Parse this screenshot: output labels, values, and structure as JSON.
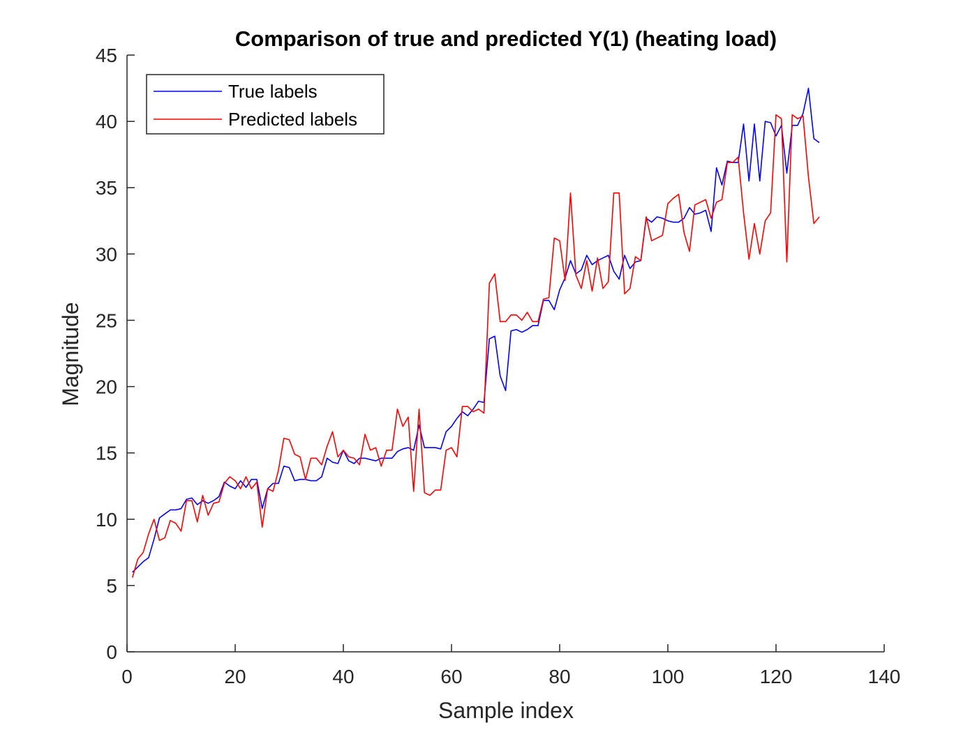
{
  "chart_data": {
    "type": "line",
    "title": "Comparison of true and predicted Y(1) (heating load)",
    "xlabel": "Sample index",
    "ylabel": "Magnitude",
    "xlim": [
      0,
      140
    ],
    "ylim": [
      0,
      45
    ],
    "xticks": [
      0,
      20,
      40,
      60,
      80,
      100,
      120,
      140
    ],
    "yticks": [
      0,
      5,
      10,
      15,
      20,
      25,
      30,
      35,
      40,
      45
    ],
    "grid": false,
    "legend_position": "top-left",
    "series": [
      {
        "name": "True labels",
        "color": "#0000ff",
        "x": [
          1,
          2,
          3,
          4,
          5,
          6,
          7,
          8,
          9,
          10,
          11,
          12,
          13,
          14,
          15,
          16,
          17,
          18,
          19,
          20,
          21,
          22,
          23,
          24,
          25,
          26,
          27,
          28,
          29,
          30,
          31,
          32,
          33,
          34,
          35,
          36,
          37,
          38,
          39,
          40,
          41,
          42,
          43,
          44,
          45,
          46,
          47,
          48,
          49,
          50,
          51,
          52,
          53,
          54,
          55,
          56,
          57,
          58,
          59,
          60,
          61,
          62,
          63,
          64,
          65,
          66,
          67,
          68,
          69,
          70,
          71,
          72,
          73,
          74,
          75,
          76,
          77,
          78,
          79,
          80,
          81,
          82,
          83,
          84,
          85,
          86,
          87,
          88,
          89,
          90,
          91,
          92,
          93,
          94,
          95,
          96,
          97,
          98,
          99,
          100,
          101,
          102,
          103,
          104,
          105,
          106,
          107,
          108,
          109,
          110,
          111,
          112,
          113,
          114,
          115,
          116,
          117,
          118,
          119,
          120,
          121,
          122,
          123,
          124,
          125,
          126,
          127,
          128
        ],
        "y": [
          6.0,
          6.4,
          6.8,
          7.1,
          8.5,
          10.1,
          10.4,
          10.7,
          10.7,
          10.8,
          11.5,
          11.6,
          11.1,
          11.4,
          11.2,
          11.4,
          11.7,
          12.8,
          12.5,
          12.3,
          12.9,
          12.4,
          13.0,
          13.0,
          10.8,
          12.3,
          12.7,
          12.7,
          14.0,
          13.9,
          12.9,
          13.0,
          13.0,
          12.9,
          12.9,
          13.2,
          14.6,
          14.3,
          14.2,
          15.2,
          14.4,
          14.2,
          14.6,
          14.6,
          14.5,
          14.4,
          14.6,
          14.6,
          14.6,
          15.1,
          15.3,
          15.4,
          15.2,
          17.1,
          15.4,
          15.4,
          15.4,
          15.3,
          16.6,
          17.0,
          17.6,
          18.1,
          17.8,
          18.3,
          18.9,
          18.8,
          23.6,
          23.8,
          20.8,
          19.7,
          24.2,
          24.3,
          24.1,
          24.3,
          24.6,
          24.6,
          26.5,
          26.5,
          25.8,
          27.3,
          28.2,
          29.5,
          28.5,
          28.8,
          29.9,
          29.2,
          29.5,
          29.7,
          29.9,
          28.7,
          28.1,
          29.9,
          28.9,
          29.4,
          29.5,
          32.7,
          32.4,
          32.8,
          32.7,
          32.5,
          32.4,
          32.4,
          32.7,
          33.5,
          33.0,
          33.1,
          33.3,
          31.7,
          36.5,
          35.2,
          37.0,
          36.9,
          36.9,
          39.8,
          35.5,
          39.8,
          35.5,
          40.0,
          39.9,
          38.9,
          39.7,
          36.1,
          39.7,
          39.7,
          40.6,
          42.5,
          38.7,
          38.4
        ]
      },
      {
        "name": "Predicted labels",
        "color": "#ff0000",
        "x": [
          1,
          2,
          3,
          4,
          5,
          6,
          7,
          8,
          9,
          10,
          11,
          12,
          13,
          14,
          15,
          16,
          17,
          18,
          19,
          20,
          21,
          22,
          23,
          24,
          25,
          26,
          27,
          28,
          29,
          30,
          31,
          32,
          33,
          34,
          35,
          36,
          37,
          38,
          39,
          40,
          41,
          42,
          43,
          44,
          45,
          46,
          47,
          48,
          49,
          50,
          51,
          52,
          53,
          54,
          55,
          56,
          57,
          58,
          59,
          60,
          61,
          62,
          63,
          64,
          65,
          66,
          67,
          68,
          69,
          70,
          71,
          72,
          73,
          74,
          75,
          76,
          77,
          78,
          79,
          80,
          81,
          82,
          83,
          84,
          85,
          86,
          87,
          88,
          89,
          90,
          91,
          92,
          93,
          94,
          95,
          96,
          97,
          98,
          99,
          100,
          101,
          102,
          103,
          104,
          105,
          106,
          107,
          108,
          109,
          110,
          111,
          112,
          113,
          114,
          115,
          116,
          117,
          118,
          119,
          120,
          121,
          122,
          123,
          124,
          125,
          126,
          127,
          128
        ],
        "y": [
          5.6,
          7.0,
          7.5,
          8.9,
          10.0,
          8.4,
          8.6,
          9.9,
          9.7,
          9.1,
          11.4,
          11.4,
          9.8,
          11.8,
          10.3,
          11.2,
          11.3,
          12.7,
          13.2,
          12.9,
          12.3,
          13.2,
          12.3,
          12.8,
          9.4,
          12.3,
          12.1,
          13.7,
          16.1,
          16.0,
          14.9,
          14.7,
          13.0,
          14.6,
          14.6,
          14.1,
          15.5,
          16.6,
          14.7,
          15.2,
          14.7,
          14.6,
          14.1,
          16.4,
          15.2,
          15.4,
          14.0,
          15.2,
          15.2,
          18.3,
          17.0,
          17.7,
          12.1,
          18.3,
          12.0,
          11.8,
          12.2,
          12.2,
          15.2,
          15.4,
          14.7,
          18.5,
          18.5,
          18.1,
          18.3,
          18.0,
          27.8,
          28.5,
          24.9,
          24.9,
          25.4,
          25.4,
          25.0,
          25.6,
          24.9,
          24.9,
          26.6,
          26.7,
          31.2,
          31.0,
          28.0,
          34.6,
          28.4,
          27.4,
          29.5,
          27.2,
          29.7,
          27.4,
          27.9,
          34.6,
          34.6,
          27.0,
          27.4,
          29.8,
          29.5,
          32.8,
          31.0,
          31.2,
          31.4,
          33.8,
          34.2,
          34.5,
          31.6,
          30.2,
          33.7,
          33.9,
          34.1,
          32.7,
          33.9,
          34.1,
          36.9,
          36.9,
          37.3,
          33.1,
          29.6,
          32.3,
          30.0,
          32.5,
          33.1,
          40.5,
          40.2,
          29.4,
          40.5,
          40.2,
          40.4,
          35.8,
          32.3,
          32.8
        ]
      }
    ]
  }
}
